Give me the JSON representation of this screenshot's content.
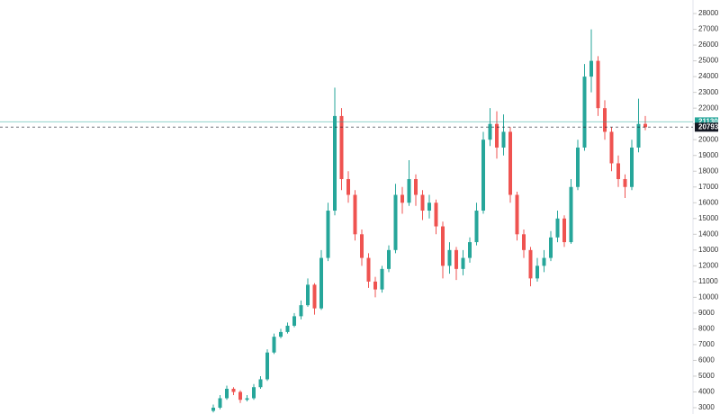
{
  "chart_data": {
    "type": "candlestick",
    "open": [
      2800,
      3000,
      3600,
      4200,
      4000,
      3500,
      3600,
      4300,
      4800,
      6500,
      7500,
      7800,
      8200,
      8800,
      9500,
      10800,
      9300,
      12500,
      15500,
      21500,
      17500,
      16500,
      14000,
      12500,
      11000,
      10500,
      11800,
      13000,
      16500,
      16000,
      17500,
      16500,
      15500,
      16000,
      14500,
      12000,
      13000,
      11800,
      12500,
      13500,
      15500,
      20000,
      21000,
      19500,
      20500,
      16500,
      14000,
      13000,
      11200,
      12000,
      12500,
      13800,
      15000,
      13500,
      17000,
      19500,
      24000,
      25000,
      22000,
      20500,
      18500,
      17500,
      17000,
      19500,
      21000
    ],
    "high": [
      3200,
      3800,
      4400,
      4300,
      4100,
      3800,
      4500,
      5000,
      6700,
      7700,
      8000,
      8400,
      9000,
      9800,
      11200,
      10900,
      13000,
      16000,
      23300,
      22000,
      18000,
      16800,
      14300,
      12800,
      11300,
      12000,
      13300,
      17200,
      17000,
      18700,
      17800,
      16800,
      16500,
      16200,
      14800,
      13500,
      13200,
      13000,
      13800,
      16000,
      20500,
      22000,
      21800,
      21600,
      20800,
      16700,
      14300,
      13200,
      12500,
      13000,
      14200,
      15500,
      15200,
      17500,
      20000,
      24800,
      27000,
      25300,
      22500,
      20800,
      19000,
      17800,
      20000,
      22600,
      21500
    ],
    "low": [
      2700,
      2900,
      3500,
      3800,
      3300,
      3400,
      3500,
      4200,
      4700,
      6400,
      7400,
      7700,
      8100,
      8600,
      9400,
      8900,
      9200,
      12300,
      15200,
      16800,
      16000,
      13600,
      12000,
      10600,
      10000,
      10300,
      11600,
      12800,
      15300,
      15800,
      15800,
      14900,
      15000,
      14000,
      11200,
      11500,
      11100,
      11400,
      12200,
      13300,
      15300,
      19600,
      18800,
      19000,
      16000,
      13600,
      12500,
      10700,
      11000,
      11600,
      12300,
      13500,
      13200,
      13400,
      16800,
      19300,
      23000,
      21500,
      20000,
      18000,
      17000,
      16300,
      16800,
      19200,
      20600
    ],
    "close": [
      3000,
      3600,
      4200,
      4000,
      3500,
      3600,
      4300,
      4800,
      6500,
      7500,
      7800,
      8200,
      8800,
      9500,
      10800,
      9300,
      12500,
      15500,
      21500,
      17500,
      16500,
      14000,
      12500,
      11000,
      10500,
      11800,
      13000,
      16500,
      16000,
      17500,
      16500,
      15500,
      16000,
      14500,
      12000,
      13000,
      11800,
      12500,
      13500,
      15500,
      20000,
      21000,
      19500,
      20500,
      16500,
      14000,
      13000,
      11200,
      12000,
      12500,
      13800,
      15000,
      13500,
      17000,
      19500,
      24000,
      25000,
      22000,
      20500,
      18500,
      17500,
      17000,
      19500,
      21000,
      20793
    ],
    "up_color": "#26a69a",
    "down_color": "#ef5350",
    "ylim": [
      2600,
      28860
    ],
    "yticks": [
      3000,
      4000,
      5000,
      6000,
      7000,
      8000,
      9000,
      10000,
      11000,
      12000,
      13000,
      14000,
      15000,
      16000,
      17000,
      18000,
      19000,
      20000,
      21000,
      22000,
      23000,
      24000,
      25000,
      26000,
      27000,
      28000
    ],
    "grid": false,
    "price_lines": [
      {
        "value": 21130,
        "color": "#26a69a",
        "style": "solid"
      },
      {
        "value": 20793,
        "color": "#131722",
        "style": "dashed"
      }
    ]
  }
}
